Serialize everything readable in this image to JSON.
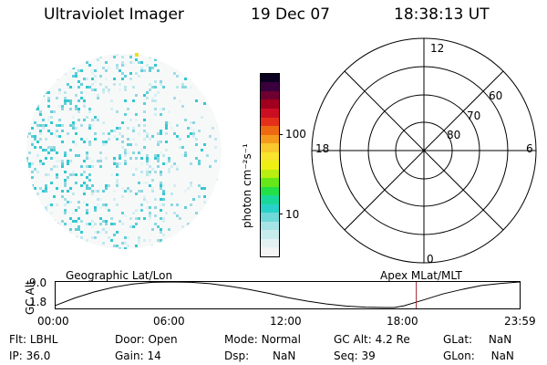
{
  "header": {
    "title": "Ultraviolet Imager",
    "date": "19 Dec 07",
    "time": "18:38:13 UT"
  },
  "colorbar": {
    "label": "photon cm⁻²s⁻¹",
    "ticks": [
      "100",
      "10"
    ],
    "colors": [
      "#f4f4f4",
      "#e4f1f3",
      "#c8ebee",
      "#a6e3e6",
      "#6fd8d8",
      "#28d2c8",
      "#19d99a",
      "#22e048",
      "#66e818",
      "#b8ee10",
      "#eef014",
      "#f8e42a",
      "#f8c82c",
      "#f49a1c",
      "#ee6a10",
      "#e4301a",
      "#cc0e22",
      "#a0001e",
      "#6e0030",
      "#3a003e",
      "#0c0022"
    ]
  },
  "polar_plot": {
    "mlt_labels": {
      "top": "12",
      "bottom": "0",
      "left": "18",
      "right": "6"
    },
    "lat_labels": [
      "60",
      "70",
      "80"
    ]
  },
  "timeline": {
    "left_label": "Geographic Lat/Lon",
    "right_label": "Apex MLat/MLT",
    "axis_title": "GC Alt",
    "y_ticks": [
      "9.0",
      "1.8"
    ],
    "x_ticks": [
      "00:00",
      "06:00",
      "12:00",
      "18:00",
      "23:59"
    ],
    "marker_color": "#a02030"
  },
  "chart_data": {
    "type": "line",
    "title": "",
    "xlabel": "",
    "ylabel": "GC Alt",
    "x_hours": [
      0,
      1,
      2,
      3,
      4,
      5,
      6,
      7,
      8,
      9,
      10,
      11,
      12,
      13,
      14,
      15,
      16,
      17,
      17.5,
      18,
      19,
      20,
      21,
      22,
      23,
      23.98
    ],
    "y": [
      2.4,
      4.5,
      6.2,
      7.5,
      8.4,
      8.9,
      9.0,
      8.9,
      8.5,
      7.8,
      6.9,
      5.8,
      4.6,
      3.6,
      2.8,
      2.2,
      1.9,
      1.8,
      1.8,
      2.3,
      3.9,
      5.6,
      6.9,
      8.0,
      8.6,
      9.0
    ],
    "ylim": [
      1.8,
      9.0
    ],
    "xlim": [
      0,
      23.98
    ],
    "current_time_hours": 18.64
  },
  "info": {
    "filter": {
      "label": "Flt:",
      "value": "LBHL"
    },
    "ip": {
      "label": "IP:",
      "value": "36.0"
    },
    "door": {
      "label": "Door:",
      "value": "Open"
    },
    "gain": {
      "label": "Gain:",
      "value": "14"
    },
    "mode": {
      "label": "Mode:",
      "value": "Normal"
    },
    "dsp": {
      "label": "Dsp:",
      "value": "NaN"
    },
    "gc_alt": {
      "label": "GC Alt:",
      "value": "4.2 Re"
    },
    "seq": {
      "label": "Seq:",
      "value": "39"
    },
    "glat": {
      "label": "GLat:",
      "value": "NaN"
    },
    "glon": {
      "label": "GLon:",
      "value": "NaN"
    }
  }
}
